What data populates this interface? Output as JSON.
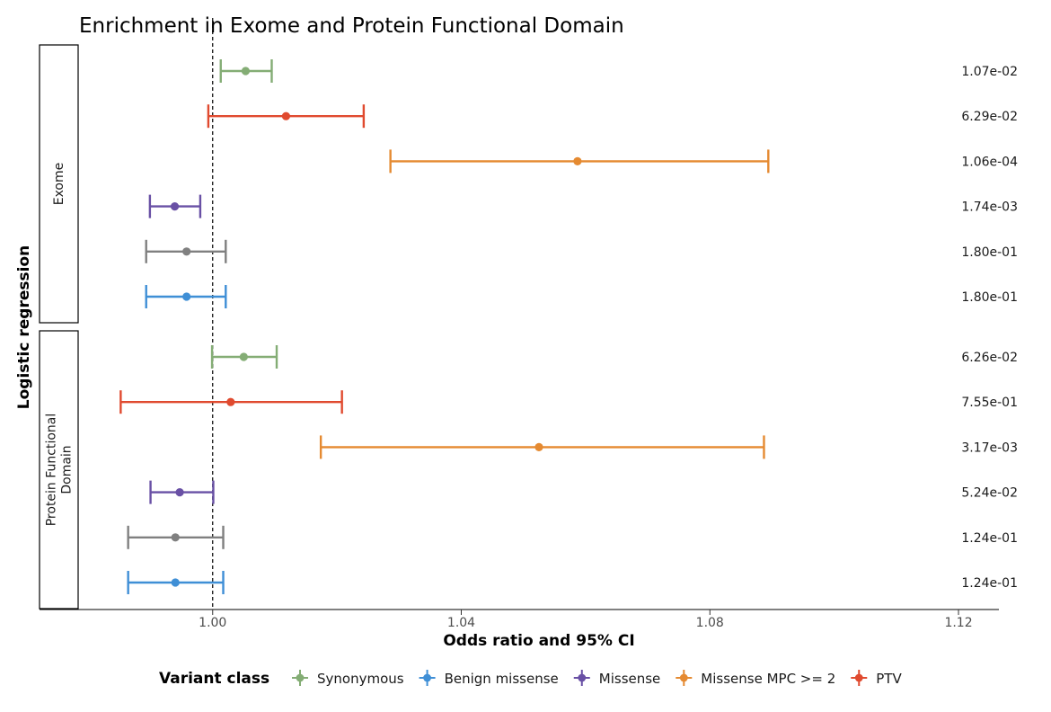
{
  "chart_data": {
    "type": "forest",
    "title": "Enrichment in Exome and Protein Functional Domain",
    "xlabel": "Odds ratio and 95% CI",
    "ylabel": "Logistic regression",
    "xlim": [
      0.9785,
      1.1265
    ],
    "xticks": [
      1.0,
      1.04,
      1.08,
      1.12
    ],
    "xtick_labels": [
      "1.00",
      "1.04",
      "1.08",
      "1.12"
    ],
    "reference_line": 1.0,
    "legend": {
      "title": "Variant class",
      "position": "bottom",
      "entries": [
        {
          "name": "Synonymous",
          "color": "#84AD75"
        },
        {
          "name": "Benign missense",
          "color": "#3F8FD6"
        },
        {
          "name": "Missense",
          "color": "#6950A5"
        },
        {
          "name": "Missense MPC >= 2",
          "color": "#E58A31"
        },
        {
          "name": "PTV",
          "color": "#E04A2F"
        }
      ]
    },
    "facets": [
      {
        "label_lines": [
          "Exome"
        ],
        "rows": [
          {
            "class": "Synonymous",
            "color": "#84AD75",
            "or": 1.0053,
            "low": 1.0013,
            "high": 1.0095,
            "p": "1.07e-02"
          },
          {
            "class": "PTV",
            "color": "#E04A2F",
            "or": 1.0118,
            "low": 0.9993,
            "high": 1.0243,
            "p": "6.29e-02"
          },
          {
            "class": "Missense MPC >= 2",
            "color": "#E58A31",
            "or": 1.0587,
            "low": 1.0286,
            "high": 1.0894,
            "p": "1.06e-04"
          },
          {
            "class": "Missense",
            "color": "#6950A5",
            "or": 0.9939,
            "low": 0.9899,
            "high": 0.998,
            "p": "1.74e-03"
          },
          {
            "class": "Grey",
            "color": "#808080",
            "or": 0.9958,
            "low": 0.9893,
            "high": 1.0021,
            "p": "1.80e-01"
          },
          {
            "class": "Benign missense",
            "color": "#3F8FD6",
            "or": 0.9958,
            "low": 0.9893,
            "high": 1.0021,
            "p": "1.80e-01"
          }
        ]
      },
      {
        "label_lines": [
          "Protein Functional",
          "Domain"
        ],
        "rows": [
          {
            "class": "Synonymous",
            "color": "#84AD75",
            "or": 1.005,
            "low": 0.9999,
            "high": 1.0103,
            "p": "6.26e-02"
          },
          {
            "class": "PTV",
            "color": "#E04A2F",
            "or": 1.0029,
            "low": 0.9852,
            "high": 1.0208,
            "p": "7.55e-01"
          },
          {
            "class": "Missense MPC >= 2",
            "color": "#E58A31",
            "or": 1.0525,
            "low": 1.0174,
            "high": 1.0887,
            "p": "3.17e-03"
          },
          {
            "class": "Missense",
            "color": "#6950A5",
            "or": 0.9947,
            "low": 0.99,
            "high": 1.0001,
            "p": "5.24e-02"
          },
          {
            "class": "Grey",
            "color": "#808080",
            "or": 0.994,
            "low": 0.9864,
            "high": 1.0017,
            "p": "1.24e-01"
          },
          {
            "class": "Benign missense",
            "color": "#3F8FD6",
            "or": 0.994,
            "low": 0.9864,
            "high": 1.0017,
            "p": "1.24e-01"
          }
        ]
      }
    ]
  }
}
